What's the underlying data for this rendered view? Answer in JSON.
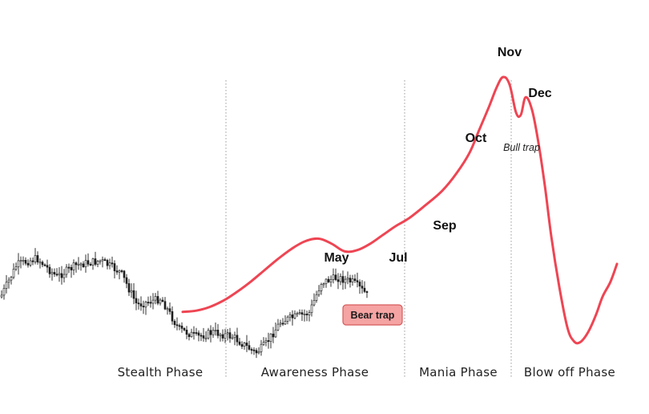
{
  "chart_data": {
    "type": "line",
    "title": "",
    "xlabel": "",
    "ylabel": "",
    "phases": [
      "Stealth Phase",
      "Awareness Phase",
      "Mania Phase",
      "Blow off Phase"
    ],
    "annotations": {
      "may": "May",
      "jul": "Jul",
      "sep": "Sep",
      "oct": "Oct",
      "nov": "Nov",
      "dec": "Dec",
      "bull_trap": "Bull trap",
      "bear_trap": "Bear trap"
    },
    "colors": {
      "curve": "#ee4553",
      "candles": "#1c1c1c",
      "divider": "#9a9a9a",
      "bear_fill": "#f6a3a3",
      "bear_stroke": "#d65b5b"
    },
    "series": [
      {
        "values": [
          15,
          15.5,
          17,
          19.5,
          23,
          27,
          31.5,
          36,
          40,
          43,
          44,
          42,
          39,
          39.5,
          42,
          45.5,
          49,
          52,
          57,
          63,
          70,
          78,
          87,
          96,
          104,
          108,
          105,
          94,
          93,
          100,
          95,
          82,
          65,
          45,
          25,
          9,
          3.5,
          3,
          7,
          14,
          21,
          27,
          34
        ]
      }
    ],
    "price_candles_description_only_visual": "",
    "ylim": [
      0,
      115
    ]
  }
}
